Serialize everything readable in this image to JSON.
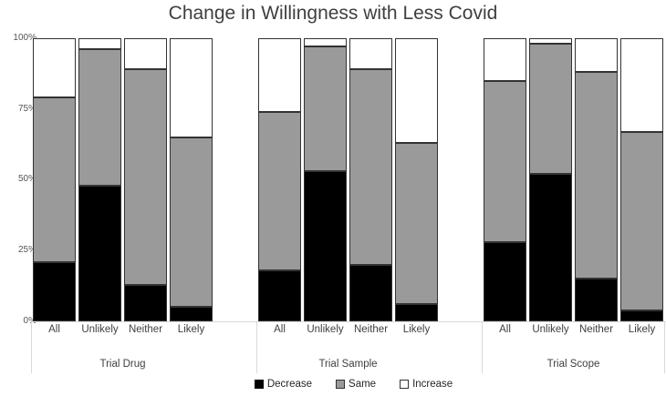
{
  "chart_data": {
    "type": "bar",
    "stacked": true,
    "orientation": "vertical",
    "title": "Change in Willingness with Less Covid",
    "value_unit": "percent",
    "ylim": [
      0,
      100
    ],
    "yticks": [
      "0%",
      "25%",
      "50%",
      "75%",
      "100%"
    ],
    "grid": false,
    "categories": [
      "All",
      "Unlikely",
      "Neither",
      "Likely"
    ],
    "groups": [
      {
        "label": "Trial Drug",
        "series": [
          {
            "name": "Decrease",
            "values": [
              21,
              48,
              13,
              5
            ]
          },
          {
            "name": "Same",
            "values": [
              58,
              48,
              76,
              60
            ]
          },
          {
            "name": "Increase",
            "values": [
              21,
              4,
              11,
              35
            ]
          }
        ]
      },
      {
        "label": "Trial Sample",
        "series": [
          {
            "name": "Decrease",
            "values": [
              18,
              53,
              20,
              6
            ]
          },
          {
            "name": "Same",
            "values": [
              56,
              44,
              69,
              57
            ]
          },
          {
            "name": "Increase",
            "values": [
              26,
              3,
              11,
              37
            ]
          }
        ]
      },
      {
        "label": "Trial Scope",
        "series": [
          {
            "name": "Decrease",
            "values": [
              28,
              52,
              15,
              4
            ]
          },
          {
            "name": "Same",
            "values": [
              57,
              46,
              73,
              63
            ]
          },
          {
            "name": "Increase",
            "values": [
              15,
              2,
              12,
              33
            ]
          }
        ]
      }
    ],
    "legend": {
      "position": "bottom",
      "entries": [
        {
          "label": "Decrease",
          "color": "#000000"
        },
        {
          "label": "Same",
          "color": "#9a9a9a"
        },
        {
          "label": "Increase",
          "color": "#ffffff"
        }
      ]
    },
    "colors": {
      "segment_border": "#333333",
      "axis_line": "#d9d9d9",
      "title_text": "#3f3f3f",
      "tick_text": "#555555"
    }
  }
}
